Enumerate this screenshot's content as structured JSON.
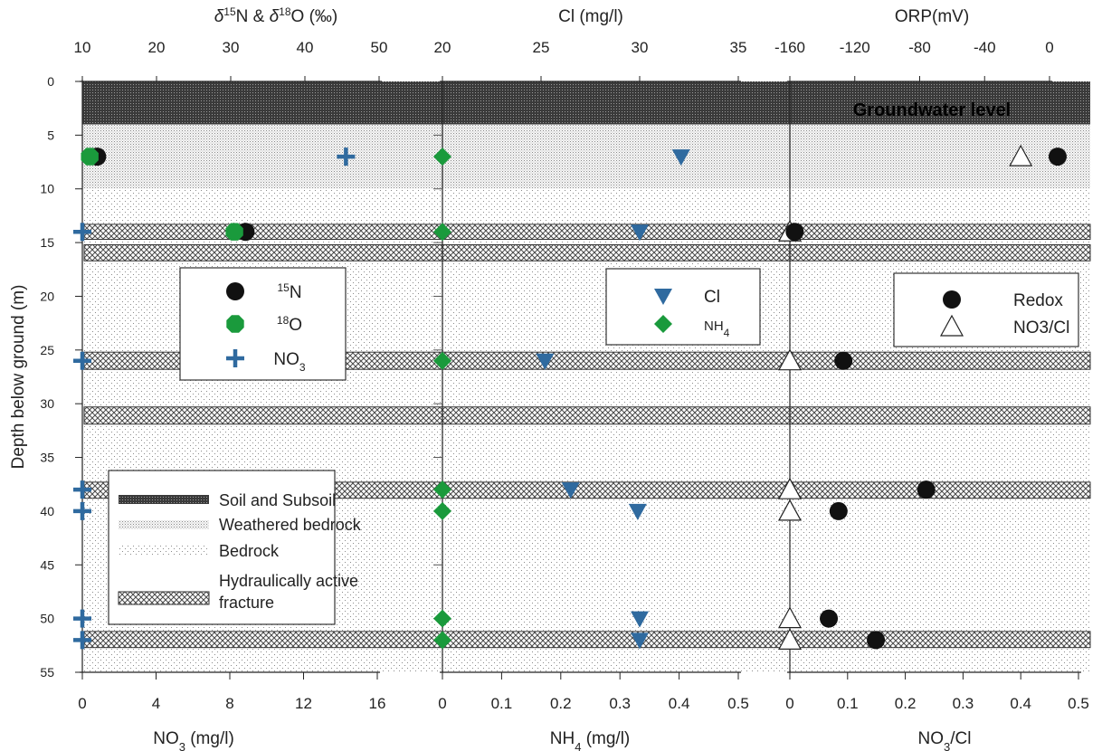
{
  "chart_data": {
    "type": "scatter",
    "title": "",
    "ylabel": "Depth below ground (m)",
    "y_ticks": [
      0,
      5,
      10,
      15,
      20,
      25,
      30,
      35,
      40,
      45,
      50,
      55
    ],
    "ylim": [
      0,
      55
    ],
    "y_inverted": true,
    "panels": [
      {
        "name": "left",
        "top_axis": {
          "label": "δ15N & δ18O (‰)",
          "range": [
            10,
            50
          ],
          "ticks": [
            10,
            20,
            30,
            40,
            50
          ]
        },
        "bottom_axis": {
          "label": "NO3 (mg/l)",
          "range": [
            0,
            16
          ],
          "ticks": [
            0,
            4,
            8,
            12,
            16
          ]
        },
        "series": [
          {
            "name": "15N",
            "axis": "top",
            "marker": "circle",
            "color": "#111111",
            "points": [
              [
                12.0,
                7
              ],
              [
                32.0,
                14
              ]
            ]
          },
          {
            "name": "18O",
            "axis": "top",
            "marker": "octagon",
            "color": "#1a9a3c",
            "points": [
              [
                11.0,
                7
              ],
              [
                30.5,
                14
              ]
            ]
          },
          {
            "name": "NO3",
            "axis": "bottom",
            "marker": "plus",
            "color": "#2f6a9f",
            "points": [
              [
                14.3,
                7
              ],
              [
                0.0,
                14
              ],
              [
                0.0,
                26
              ],
              [
                0.0,
                38
              ],
              [
                0.0,
                40
              ],
              [
                0.0,
                50
              ],
              [
                0.0,
                52
              ]
            ]
          }
        ],
        "legend": {
          "position": "upper-middle",
          "entries": [
            {
              "sup": "15",
              "text": "N",
              "sub": ""
            },
            {
              "sup": "18",
              "text": "O",
              "sub": ""
            },
            {
              "sup": "",
              "text": "NO",
              "sub": "3"
            }
          ]
        }
      },
      {
        "name": "middle",
        "top_axis": {
          "label": "Cl (mg/l)",
          "range": [
            20,
            35
          ],
          "ticks": [
            20,
            25,
            30,
            35
          ]
        },
        "bottom_axis": {
          "label": "NH4 (mg/l)",
          "range": [
            0,
            0.5
          ],
          "ticks": [
            0,
            0.1,
            0.2,
            0.3,
            0.4,
            0.5
          ]
        },
        "series": [
          {
            "name": "Cl",
            "axis": "top",
            "marker": "triangle-down",
            "color": "#2f6a9f",
            "points": [
              [
                32.1,
                7
              ],
              [
                30.0,
                14
              ],
              [
                25.2,
                26
              ],
              [
                26.5,
                38
              ],
              [
                29.9,
                40
              ],
              [
                30.0,
                50
              ],
              [
                30.0,
                52
              ]
            ]
          },
          {
            "name": "NH4",
            "axis": "bottom",
            "marker": "diamond",
            "color": "#1a9a3c",
            "points": [
              [
                0.0,
                7
              ],
              [
                0.0,
                14
              ],
              [
                0.0,
                26
              ],
              [
                0.0,
                38
              ],
              [
                0.0,
                40
              ],
              [
                0.0,
                50
              ],
              [
                0.0,
                52
              ]
            ]
          }
        ],
        "legend": {
          "position": "upper-right",
          "entries": [
            {
              "sup": "",
              "text": "Cl",
              "sub": ""
            },
            {
              "sup": "",
              "text": "NH",
              "sub": "4"
            }
          ]
        }
      },
      {
        "name": "right",
        "top_axis": {
          "label": "ORP(mV)",
          "range": [
            -160,
            0
          ],
          "ticks": [
            -160,
            -120,
            -80,
            -40,
            0
          ]
        },
        "bottom_axis": {
          "label": "NO3/Cl",
          "range": [
            0,
            0.5
          ],
          "ticks": [
            0,
            0.1,
            0.2,
            0.3,
            0.4,
            0.5
          ]
        },
        "series": [
          {
            "name": "Redox",
            "axis": "top",
            "marker": "circle",
            "color": "#111111",
            "points": [
              [
                5,
                7
              ],
              [
                -157,
                14
              ],
              [
                -127,
                26
              ],
              [
                -76,
                38
              ],
              [
                -130,
                40
              ],
              [
                -136,
                50
              ],
              [
                -107,
                52
              ]
            ]
          },
          {
            "name": "NO3/Cl",
            "axis": "bottom",
            "marker": "triangle-up-open",
            "color": "#ffffff",
            "points": [
              [
                0.4,
                7
              ],
              [
                0.0,
                14
              ],
              [
                0.0,
                26
              ],
              [
                0.0,
                38
              ],
              [
                0.0,
                40
              ],
              [
                0.0,
                50
              ],
              [
                0.0,
                52
              ]
            ]
          }
        ],
        "legend": {
          "position": "upper-right",
          "entries": [
            {
              "sup": "",
              "text": "Redox",
              "sub": ""
            },
            {
              "sup": "",
              "text": "NO3/Cl",
              "sub": ""
            }
          ]
        }
      }
    ],
    "strata": [
      {
        "name": "Soil and Subsoil",
        "from": 0,
        "to": 4,
        "pattern": "dense"
      },
      {
        "name": "Weathered bedrock",
        "from": 4,
        "to": 10,
        "pattern": "medium"
      },
      {
        "name": "Bedrock",
        "from": 10,
        "to": 55,
        "pattern": "sparse"
      }
    ],
    "fractures": [
      [
        13.3,
        14.7
      ],
      [
        15.2,
        16.7
      ],
      [
        25.2,
        26.8
      ],
      [
        30.3,
        31.9
      ],
      [
        37.3,
        38.8
      ],
      [
        51.2,
        52.7
      ]
    ],
    "annotation": "Groundwater level",
    "strata_legend": [
      {
        "name": "Soil and Subsoil",
        "pattern": "dense"
      },
      {
        "name": "Weathered bedrock",
        "pattern": "medium"
      },
      {
        "name": "Bedrock",
        "pattern": "sparse"
      },
      {
        "name": "Hydraulically active fracture",
        "pattern": "hatch"
      }
    ],
    "colors": {
      "blue": "#2f6a9f",
      "green": "#1a9a3c",
      "black": "#111111"
    },
    "grid": false
  }
}
